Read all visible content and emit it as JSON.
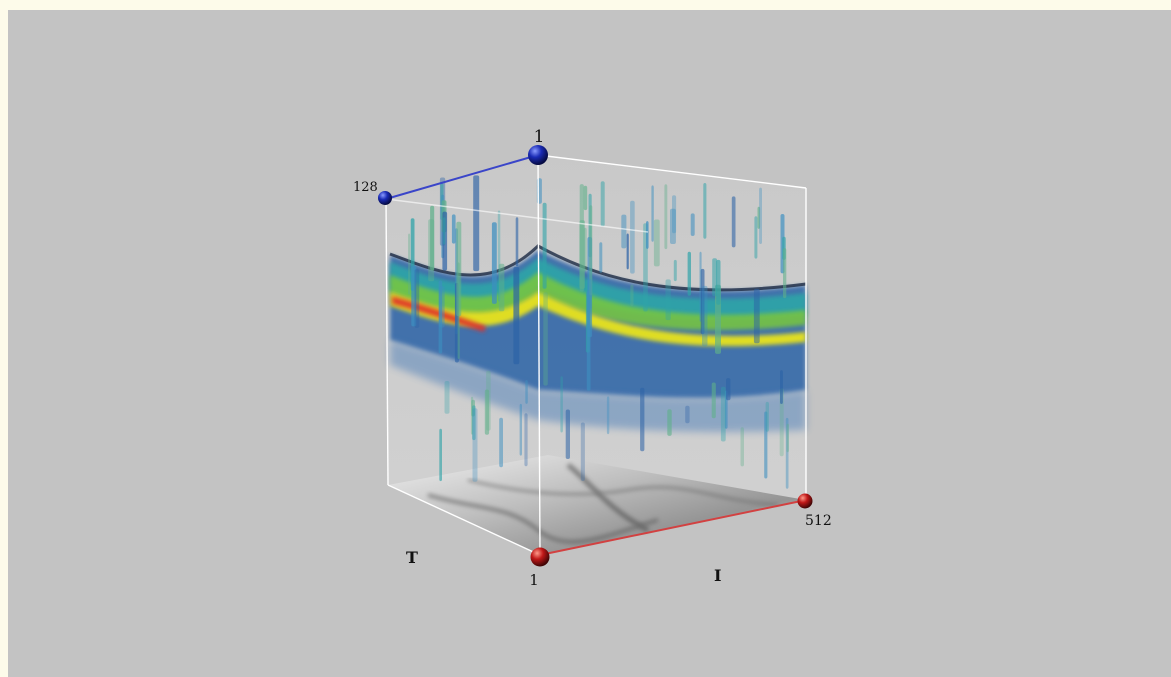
{
  "axes": {
    "vertical": {
      "label_top": "1"
    },
    "depth": {
      "end_label": "128",
      "name": "T"
    },
    "horizontal": {
      "start_label": "1",
      "end_label": "512",
      "name": "I"
    }
  },
  "colors": {
    "background": "#c3c3c3",
    "frame": "#ffffff",
    "axis_blue": "#3a45c9",
    "axis_red": "#d24141",
    "sphere_blue": "#1020a0",
    "sphere_red": "#c01818",
    "oct_dark": "#2a5fa8",
    "oct_mid": "#2fa3a8",
    "oct_green": "#79c83c",
    "oct_yellow": "#e8e31e",
    "oct_red": "#e0322a"
  }
}
